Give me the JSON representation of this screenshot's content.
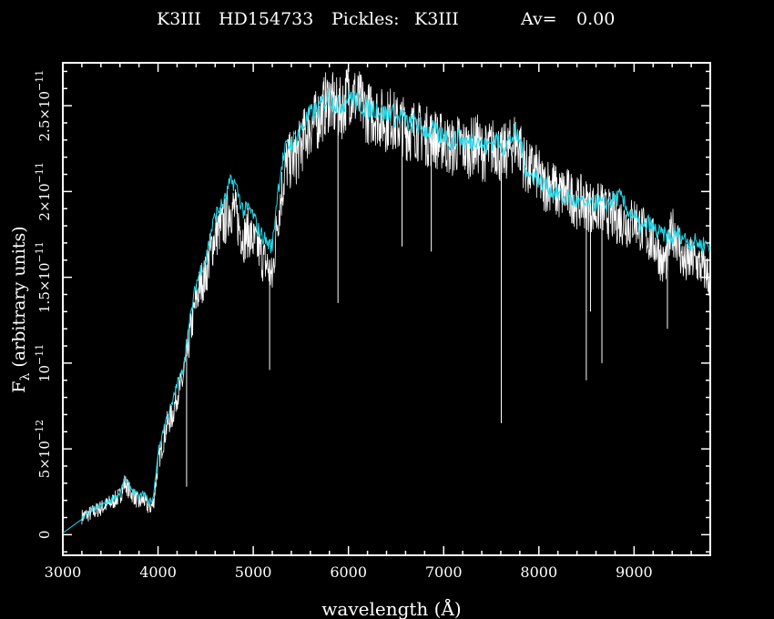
{
  "header": {
    "spectral_type": "K3III",
    "star": "HD154733",
    "pickles_label": "Pickles:",
    "pickles_type": "K3III",
    "av_label": "Av=",
    "av_value": "0.00"
  },
  "chart_data": {
    "type": "line",
    "title": "K3III   HD154733   Pickles: K3III          Av=   0.00",
    "xlabel": "wavelength (Å)",
    "ylabel": "F_λ (arbitrary units)",
    "ylabel_parts": {
      "main": "F",
      "sub": "λ",
      "rest": " (arbitrary units)"
    },
    "xlim": [
      3000,
      9800
    ],
    "ylim": [
      -1.2e-12,
      2.75e-11
    ],
    "x_ticks": [
      {
        "value": 3000,
        "label": "3000"
      },
      {
        "value": 4000,
        "label": "4000"
      },
      {
        "value": 5000,
        "label": "5000"
      },
      {
        "value": 6000,
        "label": "6000"
      },
      {
        "value": 7000,
        "label": "7000"
      },
      {
        "value": 8000,
        "label": "8000"
      },
      {
        "value": 9000,
        "label": "9000"
      }
    ],
    "y_ticks": [
      {
        "value": 0,
        "mant": "0",
        "exp": ""
      },
      {
        "value": 5e-12,
        "mant": "5×10",
        "exp": "−12"
      },
      {
        "value": 1e-11,
        "mant": "10",
        "exp": "−11"
      },
      {
        "value": 1.5e-11,
        "mant": "1.5×10",
        "exp": "−11"
      },
      {
        "value": 2e-11,
        "mant": "2×10",
        "exp": "−11"
      },
      {
        "value": 2.5e-11,
        "mant": "2.5×10",
        "exp": "−11"
      }
    ],
    "series": [
      {
        "role": "observed",
        "color": "#ffffff",
        "x": [
          3200,
          3300,
          3400,
          3500,
          3600,
          3650,
          3700,
          3750,
          3800,
          3850,
          3900,
          3950,
          4000,
          4050,
          4100,
          4150,
          4200,
          4250,
          4300,
          4350,
          4400,
          4450,
          4500,
          4550,
          4600,
          4650,
          4700,
          4750,
          4800,
          4850,
          4900,
          4950,
          5000,
          5050,
          5100,
          5150,
          5200,
          5250,
          5300,
          5350,
          5400,
          5450,
          5500,
          5550,
          5600,
          5650,
          5700,
          5750,
          5800,
          5850,
          5900,
          5950,
          6000,
          6050,
          6100,
          6150,
          6200,
          6250,
          6300,
          6350,
          6400,
          6450,
          6500,
          6550,
          6600,
          6650,
          6700,
          6750,
          6800,
          6850,
          6900,
          6950,
          7000,
          7050,
          7100,
          7150,
          7200,
          7250,
          7300,
          7350,
          7400,
          7450,
          7500,
          7550,
          7600,
          7650,
          7700,
          7750,
          7800,
          7850,
          7900,
          7950,
          8000,
          8050,
          8100,
          8150,
          8200,
          8250,
          8300,
          8350,
          8400,
          8450,
          8500,
          8550,
          8600,
          8650,
          8700,
          8750,
          8800,
          8850,
          8900,
          8950,
          9000,
          9050,
          9100,
          9150,
          9200,
          9250,
          9300,
          9350,
          9400,
          9450,
          9500,
          9550,
          9600,
          9650,
          9700,
          9750,
          9800
        ],
        "y": [
          1.1e-12,
          1.3e-12,
          1.6e-12,
          1.9e-12,
          2.3e-12,
          3.1e-12,
          2.6e-12,
          2.3e-12,
          1.9e-12,
          2.1e-12,
          1.6e-12,
          1.8e-12,
          4.2e-12,
          5.4e-12,
          6.6e-12,
          7e-12,
          8.3e-12,
          8.8e-12,
          1.05e-11,
          1.22e-11,
          1.38e-11,
          1.48e-11,
          1.52e-11,
          1.66e-11,
          1.76e-11,
          1.8e-11,
          1.83e-11,
          1.92e-11,
          1.91e-11,
          1.81e-11,
          1.74e-11,
          1.78e-11,
          1.72e-11,
          1.69e-11,
          1.62e-11,
          1.58e-11,
          1.5e-11,
          1.83e-11,
          2.02e-11,
          2.18e-11,
          2.2e-11,
          2.22e-11,
          2.28e-11,
          2.36e-11,
          2.4e-11,
          2.42e-11,
          2.46e-11,
          2.52e-11,
          2.56e-11,
          2.51e-11,
          2.49e-11,
          2.52e-11,
          2.61e-11,
          2.58e-11,
          2.55e-11,
          2.51e-11,
          2.48e-11,
          2.47e-11,
          2.47e-11,
          2.44e-11,
          2.43e-11,
          2.46e-11,
          2.4e-11,
          2.42e-11,
          2.38e-11,
          2.37e-11,
          2.39e-11,
          2.36e-11,
          2.35e-11,
          2.33e-11,
          2.34e-11,
          2.3e-11,
          2.32e-11,
          2.28e-11,
          2.27e-11,
          2.3e-11,
          2.28e-11,
          2.26e-11,
          2.28e-11,
          2.3e-11,
          2.25e-11,
          2.24e-11,
          2.27e-11,
          2.29e-11,
          2.22e-11,
          2.25e-11,
          2.27e-11,
          2.32e-11,
          2.28e-11,
          2.18e-11,
          2.13e-11,
          2.15e-11,
          2.1e-11,
          2.04e-11,
          2.07e-11,
          2.05e-11,
          1.99e-11,
          2.01e-11,
          2e-11,
          1.98e-11,
          1.95e-11,
          1.96e-11,
          1.94e-11,
          1.93e-11,
          1.9e-11,
          1.93e-11,
          1.89e-11,
          1.88e-11,
          1.86e-11,
          1.85e-11,
          1.84e-11,
          1.82e-11,
          1.86e-11,
          1.82e-11,
          1.78e-11,
          1.74e-11,
          1.72e-11,
          1.68e-11,
          1.58e-11,
          1.64e-11,
          1.79e-11,
          1.75e-11,
          1.62e-11,
          1.58e-11,
          1.62e-11,
          1.6e-11,
          1.58e-11,
          1.55e-11,
          1.5e-11
        ]
      },
      {
        "role": "pickles_template",
        "color": "#22d8e8",
        "x": [
          3000,
          3100,
          3200,
          3300,
          3400,
          3500,
          3600,
          3650,
          3700,
          3750,
          3800,
          3850,
          3900,
          3950,
          4000,
          4050,
          4100,
          4150,
          4200,
          4250,
          4300,
          4350,
          4400,
          4450,
          4500,
          4550,
          4600,
          4650,
          4700,
          4750,
          4800,
          4850,
          4900,
          4950,
          5000,
          5050,
          5100,
          5150,
          5200,
          5250,
          5300,
          5350,
          5400,
          5450,
          5500,
          5550,
          5600,
          5650,
          5700,
          5750,
          5800,
          5850,
          5900,
          5950,
          6000,
          6050,
          6100,
          6150,
          6200,
          6250,
          6300,
          6350,
          6400,
          6450,
          6500,
          6550,
          6600,
          6650,
          6700,
          6750,
          6800,
          6850,
          6900,
          6950,
          7000,
          7050,
          7100,
          7150,
          7200,
          7250,
          7300,
          7350,
          7400,
          7450,
          7500,
          7550,
          7600,
          7650,
          7700,
          7750,
          7800,
          7850,
          7900,
          7950,
          8000,
          8050,
          8100,
          8150,
          8200,
          8250,
          8300,
          8350,
          8400,
          8450,
          8500,
          8550,
          8600,
          8650,
          8700,
          8750,
          8800,
          8850,
          8900,
          8950,
          9000,
          9050,
          9100,
          9150,
          9200,
          9250,
          9300,
          9350,
          9400,
          9450,
          9500,
          9550,
          9600,
          9650,
          9700,
          9750,
          9800
        ],
        "y": [
          1e-13,
          5e-13,
          9e-13,
          1.4e-12,
          1.7e-12,
          2e-12,
          2.4e-12,
          3.2e-12,
          2.8e-12,
          2.5e-12,
          2.2e-12,
          2.4e-12,
          1.9e-12,
          2.1e-12,
          4.8e-12,
          6e-12,
          7e-12,
          7.6e-12,
          8.8e-12,
          9.4e-12,
          1.12e-11,
          1.3e-11,
          1.46e-11,
          1.55e-11,
          1.6e-11,
          1.75e-11,
          1.86e-11,
          1.9e-11,
          1.94e-11,
          2.04e-11,
          2.06e-11,
          1.97e-11,
          1.88e-11,
          1.9e-11,
          1.86e-11,
          1.78e-11,
          1.74e-11,
          1.7e-11,
          1.68e-11,
          1.97e-11,
          2.16e-11,
          2.26e-11,
          2.28e-11,
          2.32e-11,
          2.36e-11,
          2.41e-11,
          2.45e-11,
          2.47e-11,
          2.49e-11,
          2.53e-11,
          2.55e-11,
          2.52e-11,
          2.5e-11,
          2.52e-11,
          2.56e-11,
          2.54e-11,
          2.52e-11,
          2.5e-11,
          2.48e-11,
          2.49e-11,
          2.49e-11,
          2.46e-11,
          2.45e-11,
          2.47e-11,
          2.42e-11,
          2.44e-11,
          2.41e-11,
          2.39e-11,
          2.41e-11,
          2.38e-11,
          2.36e-11,
          2.35e-11,
          2.36e-11,
          2.32e-11,
          2.34e-11,
          2.3e-11,
          2.29e-11,
          2.32e-11,
          2.3e-11,
          2.28e-11,
          2.3e-11,
          2.32e-11,
          2.27e-11,
          2.26e-11,
          2.29e-11,
          2.31e-11,
          2.25e-11,
          2.28e-11,
          2.3e-11,
          2.34e-11,
          2.3e-11,
          2.16e-11,
          2.08e-11,
          2.1e-11,
          2.07e-11,
          2.04e-11,
          2.03e-11,
          2e-11,
          1.99e-11,
          1.96e-11,
          1.97e-11,
          1.95e-11,
          1.94e-11,
          1.93e-11,
          1.92e-11,
          1.91e-11,
          1.94e-11,
          1.93e-11,
          1.92e-11,
          1.94e-11,
          1.96e-11,
          1.97e-11,
          1.92e-11,
          1.88e-11,
          1.85e-11,
          1.8e-11,
          1.78e-11,
          1.82e-11,
          1.79e-11,
          1.76e-11,
          1.75e-11,
          1.74e-11,
          1.72e-11,
          1.76e-11,
          1.74e-11,
          1.72e-11,
          1.7e-11,
          1.71e-11,
          1.69e-11,
          1.7e-11,
          1.68e-11
        ]
      }
    ],
    "absorption_lines": [
      {
        "x": 4300,
        "y": 2.8e-12
      },
      {
        "x": 5172,
        "y": 9.6e-12
      },
      {
        "x": 5890,
        "y": 1.35e-11
      },
      {
        "x": 6563,
        "y": 1.68e-11
      },
      {
        "x": 6870,
        "y": 1.65e-11
      },
      {
        "x": 7605,
        "y": 6.5e-12
      },
      {
        "x": 8498,
        "y": 9e-12
      },
      {
        "x": 8542,
        "y": 1.3e-11
      },
      {
        "x": 8662,
        "y": 1e-11
      },
      {
        "x": 9350,
        "y": 1.2e-11
      }
    ]
  }
}
